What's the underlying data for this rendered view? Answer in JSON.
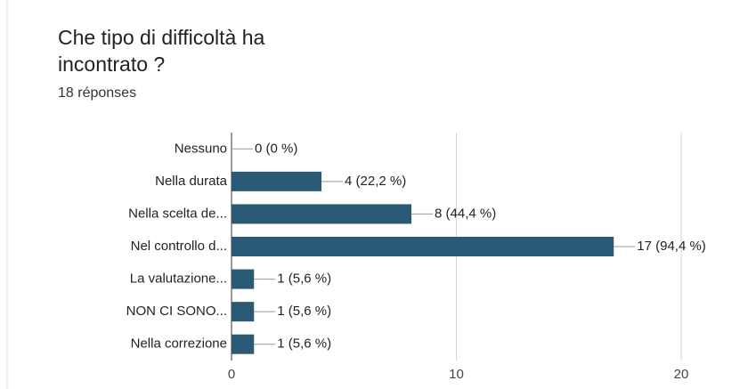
{
  "chart_data": {
    "type": "bar",
    "orientation": "horizontal",
    "title": [
      "Che tipo di difficoltà ha",
      "incontrato ?"
    ],
    "subtitle": "18 réponses",
    "categories": [
      "Nessuno",
      "Nella durata",
      "Nella scelta de...",
      "Nel controllo d...",
      "La valutazione...",
      "NON CI SONO...",
      "Nella correzione"
    ],
    "values": [
      0,
      4,
      8,
      17,
      1,
      1,
      1
    ],
    "value_labels": [
      "0 (0 %)",
      "4 (22,2 %)",
      "8 (44,4 %)",
      "17 (94,4 %)",
      "1 (5,6 %)",
      "1 (5,6 %)",
      "1 (5,6 %)"
    ],
    "color": "#2a5a75",
    "xlim": [
      0,
      20
    ],
    "xticks": [
      0,
      10,
      20
    ],
    "grid": true
  }
}
